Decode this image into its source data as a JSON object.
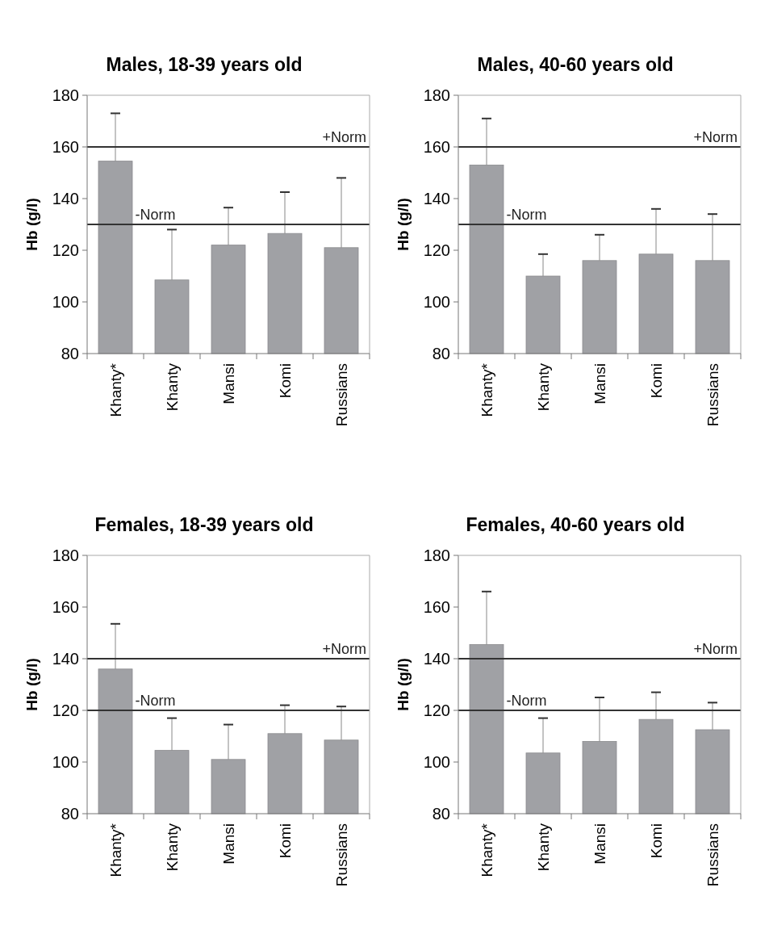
{
  "chart_data": [
    {
      "type": "bar",
      "title": "Males, 18-39 years old",
      "ylabel": "Hb (g/l)",
      "categories": [
        "Khanty*",
        "Khanty",
        "Mansi",
        "Komi",
        "Russians"
      ],
      "values": [
        154.5,
        108.5,
        122,
        126.5,
        121
      ],
      "errors": [
        [
          154.5,
          173
        ],
        [
          108.5,
          128
        ],
        [
          122,
          136.5
        ],
        [
          126.5,
          142.5
        ],
        [
          121,
          148
        ]
      ],
      "color": "#a0a1a5",
      "ylim": [
        80,
        180
      ],
      "yticks": [
        80,
        100,
        120,
        140,
        160,
        180
      ],
      "grid": false,
      "ref_lines": [
        {
          "axis": "y",
          "value": 160,
          "label": "+Norm"
        },
        {
          "axis": "y",
          "value": 130,
          "label": "-Norm"
        }
      ]
    },
    {
      "type": "bar",
      "title": "Males, 40-60 years old",
      "ylabel": "Hb (g/l)",
      "categories": [
        "Khanty*",
        "Khanty",
        "Mansi",
        "Komi",
        "Russians"
      ],
      "values": [
        153,
        110,
        116,
        118.5,
        116
      ],
      "errors": [
        [
          153,
          171
        ],
        [
          110,
          118.5
        ],
        [
          116,
          126
        ],
        [
          118.5,
          136
        ],
        [
          116,
          134
        ]
      ],
      "color": "#a0a1a5",
      "ylim": [
        80,
        180
      ],
      "yticks": [
        80,
        100,
        120,
        140,
        160,
        180
      ],
      "grid": false,
      "ref_lines": [
        {
          "axis": "y",
          "value": 160,
          "label": "+Norm"
        },
        {
          "axis": "y",
          "value": 130,
          "label": "-Norm"
        }
      ]
    },
    {
      "type": "bar",
      "title": "Females, 18-39 years old",
      "ylabel": "Hb (g/l)",
      "categories": [
        "Khanty*",
        "Khanty",
        "Mansi",
        "Komi",
        "Russians"
      ],
      "values": [
        136,
        104.5,
        101,
        111,
        108.5
      ],
      "errors": [
        [
          136,
          153.5
        ],
        [
          104.5,
          117
        ],
        [
          101,
          114.5
        ],
        [
          111,
          122
        ],
        [
          108.5,
          121.5
        ]
      ],
      "color": "#a0a1a5",
      "ylim": [
        80,
        180
      ],
      "yticks": [
        80,
        100,
        120,
        140,
        160,
        180
      ],
      "grid": false,
      "ref_lines": [
        {
          "axis": "y",
          "value": 140,
          "label": "+Norm"
        },
        {
          "axis": "y",
          "value": 120,
          "label": "-Norm"
        }
      ]
    },
    {
      "type": "bar",
      "title": "Females, 40-60 years old",
      "ylabel": "Hb (g/l)",
      "categories": [
        "Khanty*",
        "Khanty",
        "Mansi",
        "Komi",
        "Russians"
      ],
      "values": [
        145.5,
        103.5,
        108,
        116.5,
        112.5
      ],
      "errors": [
        [
          145.5,
          166
        ],
        [
          103.5,
          117
        ],
        [
          108,
          125
        ],
        [
          116.5,
          127
        ],
        [
          112.5,
          123
        ]
      ],
      "color": "#a0a1a5",
      "ylim": [
        80,
        180
      ],
      "yticks": [
        80,
        100,
        120,
        140,
        160,
        180
      ],
      "grid": false,
      "ref_lines": [
        {
          "axis": "y",
          "value": 140,
          "label": "+Norm"
        },
        {
          "axis": "y",
          "value": 120,
          "label": "-Norm"
        }
      ]
    }
  ]
}
